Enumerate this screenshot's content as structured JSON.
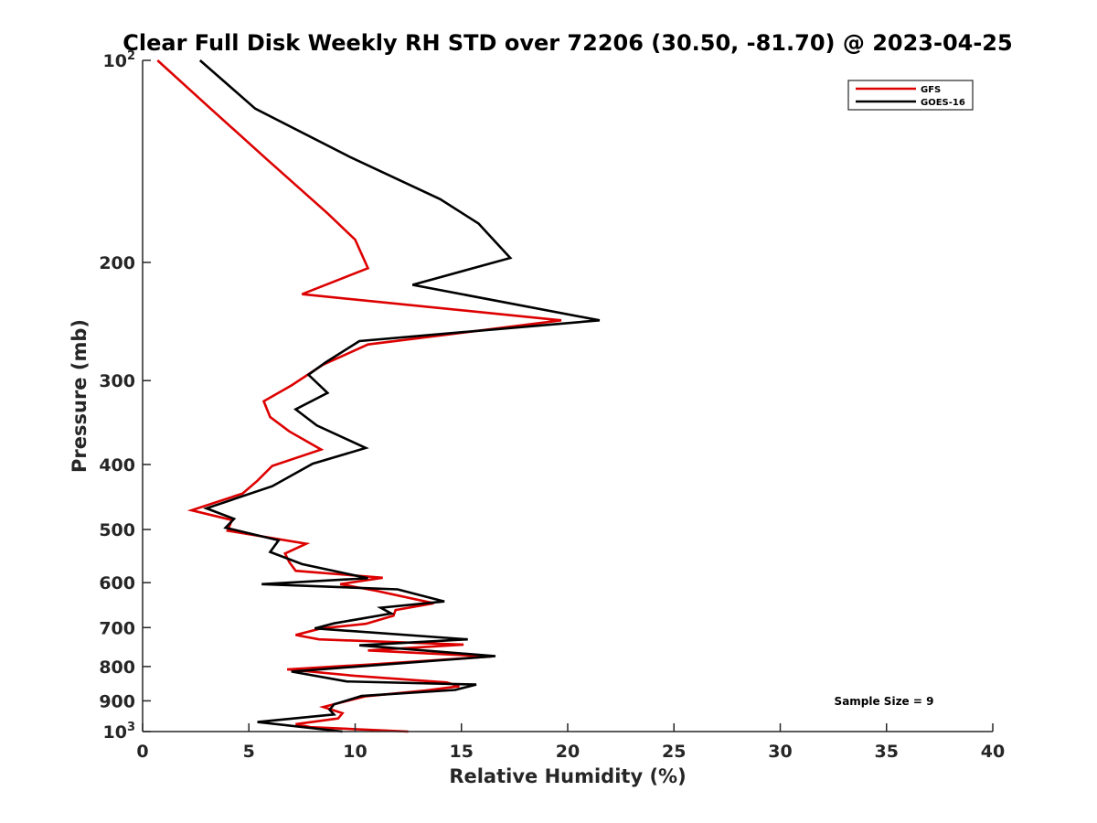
{
  "chart_data": {
    "type": "line",
    "title": "Clear Full Disk Weekly RH STD over 72206 (30.50, -81.70) @ 2023-04-25",
    "xlabel": "Relative Humidity (%)",
    "ylabel": "Pressure (mb)",
    "xlim": [
      0,
      40
    ],
    "ylim": [
      100,
      1000
    ],
    "y_scale": "log",
    "y_reversed": true,
    "grid": false,
    "legend_position": "top-right",
    "x_ticks": [
      0,
      5,
      10,
      15,
      20,
      25,
      30,
      35,
      40
    ],
    "y_ticks": [
      {
        "value": 100,
        "base": "10",
        "exp": "2"
      },
      {
        "value": 200,
        "label": "200"
      },
      {
        "value": 300,
        "label": "300"
      },
      {
        "value": 400,
        "label": "400"
      },
      {
        "value": 500,
        "label": "500"
      },
      {
        "value": 600,
        "label": "600"
      },
      {
        "value": 700,
        "label": "700"
      },
      {
        "value": 800,
        "label": "800"
      },
      {
        "value": 900,
        "label": "900"
      },
      {
        "value": 1000,
        "base": "10",
        "exp": "3"
      }
    ],
    "annotation": "Sample Size = 9",
    "series": [
      {
        "name": "GFS",
        "color": "#dd0000",
        "points": [
          [
            0.7,
            100
          ],
          [
            3.2,
            118
          ],
          [
            5.8,
            140
          ],
          [
            8.7,
            169
          ],
          [
            10.0,
            185
          ],
          [
            10.6,
            204
          ],
          [
            7.5,
            223
          ],
          [
            19.7,
            244
          ],
          [
            10.6,
            265
          ],
          [
            8.5,
            284
          ],
          [
            7.0,
            305
          ],
          [
            5.7,
            322
          ],
          [
            6.0,
            340
          ],
          [
            6.9,
            357
          ],
          [
            8.4,
            380
          ],
          [
            6.1,
            402
          ],
          [
            5.4,
            423
          ],
          [
            4.7,
            442
          ],
          [
            2.3,
            468
          ],
          [
            4.2,
            484
          ],
          [
            4.0,
            502
          ],
          [
            7.7,
            525
          ],
          [
            6.7,
            543
          ],
          [
            6.9,
            559
          ],
          [
            7.2,
            576
          ],
          [
            11.3,
            590
          ],
          [
            9.3,
            603
          ],
          [
            11.0,
            617
          ],
          [
            13.7,
            644
          ],
          [
            11.9,
            659
          ],
          [
            11.8,
            672
          ],
          [
            10.5,
            691
          ],
          [
            8.4,
            702
          ],
          [
            7.2,
            718
          ],
          [
            8.3,
            729
          ],
          [
            15.1,
            742
          ],
          [
            10.6,
            757
          ],
          [
            16.4,
            773
          ],
          [
            10.8,
            794
          ],
          [
            6.8,
            808
          ],
          [
            10.0,
            826
          ],
          [
            14.3,
            845
          ],
          [
            14.9,
            856
          ],
          [
            13.3,
            869
          ],
          [
            10.5,
            886
          ],
          [
            8.5,
            919
          ],
          [
            9.4,
            939
          ],
          [
            9.2,
            956
          ],
          [
            7.2,
            975
          ],
          [
            7.9,
            985
          ],
          [
            12.5,
            1000
          ]
        ]
      },
      {
        "name": "GOES-16",
        "color": "#000000",
        "points": [
          [
            2.7,
            100
          ],
          [
            5.3,
            118
          ],
          [
            9.7,
            139
          ],
          [
            14.0,
            161
          ],
          [
            15.8,
            175
          ],
          [
            17.3,
            197
          ],
          [
            12.7,
            216
          ],
          [
            21.5,
            244
          ],
          [
            10.2,
            262
          ],
          [
            8.6,
            282
          ],
          [
            7.8,
            294
          ],
          [
            8.7,
            313
          ],
          [
            7.2,
            331
          ],
          [
            8.2,
            350
          ],
          [
            10.5,
            378
          ],
          [
            8.0,
            399
          ],
          [
            6.1,
            431
          ],
          [
            3.0,
            465
          ],
          [
            4.3,
            482
          ],
          [
            3.9,
            497
          ],
          [
            6.4,
            519
          ],
          [
            6.0,
            540
          ],
          [
            7.5,
            563
          ],
          [
            10.6,
            591
          ],
          [
            5.6,
            603
          ],
          [
            12.0,
            614
          ],
          [
            14.2,
            640
          ],
          [
            11.2,
            654
          ],
          [
            11.7,
            667
          ],
          [
            9.0,
            690
          ],
          [
            8.1,
            702
          ],
          [
            15.3,
            729
          ],
          [
            10.2,
            744
          ],
          [
            16.6,
            772
          ],
          [
            7.0,
            814
          ],
          [
            9.6,
            842
          ],
          [
            15.7,
            851
          ],
          [
            14.7,
            867
          ],
          [
            10.3,
            885
          ],
          [
            9.0,
            911
          ],
          [
            8.8,
            928
          ],
          [
            9.0,
            943
          ],
          [
            5.4,
            968
          ],
          [
            9.4,
            1000
          ]
        ]
      }
    ]
  }
}
